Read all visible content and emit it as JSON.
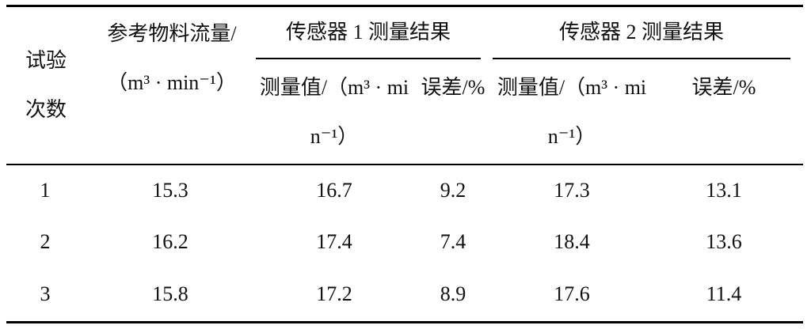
{
  "table": {
    "header": {
      "trial": "试验次数",
      "reference": "参考物料流量/（m³ · min⁻¹）",
      "sensor1": {
        "title": "传感器 1 测量结果",
        "value": "测量值/（m³ · min⁻¹）",
        "error": "误差/%"
      },
      "sensor2": {
        "title": "传感器 2 测量结果",
        "value": "测量值/（m³ · min⁻¹）",
        "error": "误差/%"
      }
    },
    "rows": [
      [
        1,
        15.3,
        16.7,
        9.2,
        17.3,
        13.1
      ],
      [
        2,
        16.2,
        17.4,
        7.4,
        18.4,
        13.6
      ],
      [
        3,
        15.8,
        17.2,
        8.9,
        17.6,
        11.4
      ]
    ]
  }
}
